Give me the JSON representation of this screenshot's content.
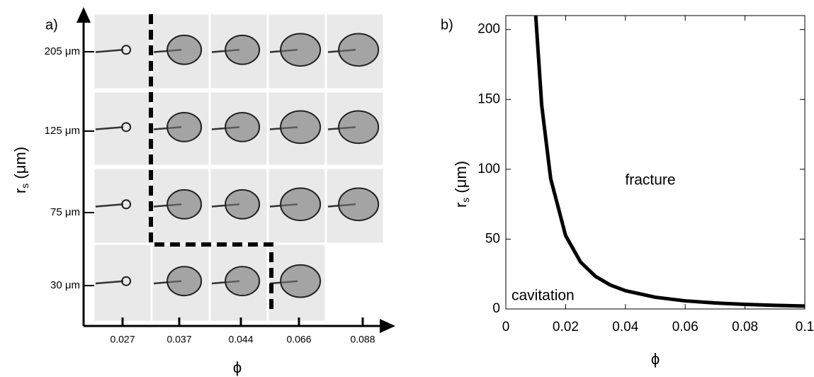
{
  "chart_data": [
    {
      "type": "image-grid",
      "panel_label": "a)",
      "categories": [
        "0.027",
        "0.037",
        "0.044",
        "0.066",
        "0.088"
      ],
      "rows": [
        "205 μm",
        "125 μm",
        "75 μm",
        "30 μm"
      ],
      "xlabel": "ϕ",
      "ylabel": {
        "base": "r",
        "sub": "s",
        "rest": " (μm)"
      }
    },
    {
      "type": "line",
      "panel_label": "b)",
      "x": [
        0.01,
        0.012,
        0.015,
        0.02,
        0.025,
        0.03,
        0.035,
        0.04,
        0.05,
        0.06,
        0.07,
        0.08,
        0.09,
        0.1
      ],
      "series": [
        {
          "color": "#000000",
          "values": [
            210,
            145.8,
            93.3,
            52.5,
            33.6,
            23.3,
            17.1,
            13.1,
            8.4,
            5.8,
            4.3,
            3.3,
            2.6,
            2.1
          ]
        }
      ],
      "xlim": [
        0,
        0.1
      ],
      "ylim": [
        0,
        210
      ],
      "xticks": [
        0,
        0.02,
        0.04,
        0.06,
        0.08,
        0.1
      ],
      "yticks": [
        0,
        50,
        100,
        150,
        200
      ],
      "xlabel": "ϕ",
      "ylabel": {
        "base": "r",
        "sub": "s",
        "rest": " (μm)"
      },
      "annotations": [
        "fracture",
        "cavitation"
      ]
    }
  ]
}
